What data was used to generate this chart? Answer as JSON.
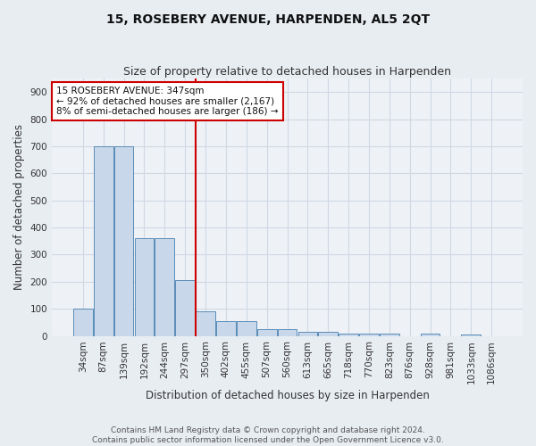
{
  "title": "15, ROSEBERY AVENUE, HARPENDEN, AL5 2QT",
  "subtitle": "Size of property relative to detached houses in Harpenden",
  "xlabel": "Distribution of detached houses by size in Harpenden",
  "ylabel": "Number of detached properties",
  "categories": [
    "34sqm",
    "87sqm",
    "139sqm",
    "192sqm",
    "244sqm",
    "297sqm",
    "350sqm",
    "402sqm",
    "455sqm",
    "507sqm",
    "560sqm",
    "613sqm",
    "665sqm",
    "718sqm",
    "770sqm",
    "823sqm",
    "876sqm",
    "928sqm",
    "981sqm",
    "1033sqm",
    "1086sqm"
  ],
  "values": [
    100,
    700,
    700,
    360,
    360,
    205,
    90,
    55,
    55,
    25,
    25,
    15,
    15,
    10,
    10,
    7,
    0,
    7,
    0,
    5,
    0
  ],
  "bar_color": "#c8d8ea",
  "bar_edge_color": "#5b8db8",
  "vline_color": "#cc0000",
  "annotation_text": "15 ROSEBERY AVENUE: 347sqm\n← 92% of detached houses are smaller (2,167)\n8% of semi-detached houses are larger (186) →",
  "annotation_box_color": "white",
  "annotation_box_edge": "#cc0000",
  "ylim": [
    0,
    950
  ],
  "yticks": [
    0,
    100,
    200,
    300,
    400,
    500,
    600,
    700,
    800,
    900
  ],
  "bg_color": "#e8edf2",
  "plot_bg_color": "#eef2f7",
  "grid_color": "#d0d8e4",
  "footer": "Contains HM Land Registry data © Crown copyright and database right 2024.\nContains public sector information licensed under the Open Government Licence v3.0.",
  "title_fontsize": 10,
  "subtitle_fontsize": 9,
  "axis_label_fontsize": 8.5,
  "tick_fontsize": 7.5,
  "footer_fontsize": 6.5
}
